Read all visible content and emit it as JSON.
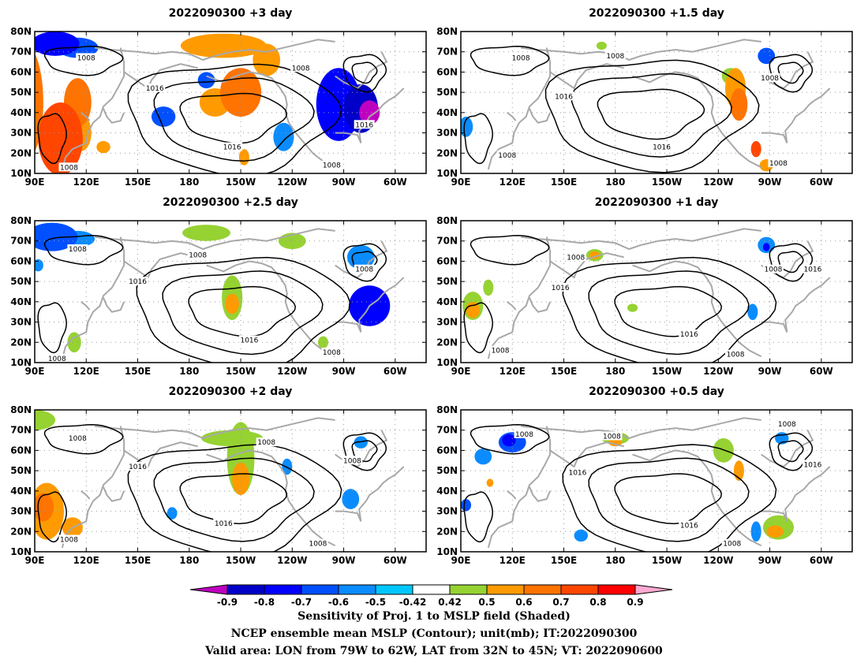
{
  "colors": {
    "-0.9": "#c000c0",
    "-0.8": "#0000c8",
    "-0.7": "#0000ff",
    "-0.6": "#0050ff",
    "-0.5": "#0a8cff",
    "-0.42": "#00c8ff",
    "0.42": "#ffffff",
    "0.5": "#96d232",
    "0.6": "#ff9b00",
    "0.7": "#ff7300",
    "0.8": "#ff4600",
    "0.9": "#ff0000",
    "over": "#ffaad2",
    "coast": "#a8a8a8",
    "contour": "#000000",
    "grid": "#9a9a9a"
  },
  "lat_ticks": [
    "80N",
    "70N",
    "60N",
    "50N",
    "40N",
    "30N",
    "20N",
    "10N"
  ],
  "lon_ticks": [
    "90E",
    "120E",
    "150E",
    "180",
    "150W",
    "120W",
    "90W",
    "60W"
  ],
  "panels": [
    {
      "title": "2022090300 +3 day",
      "contour_labels": [
        {
          "t": "1008",
          "lon": 120,
          "lat": 67
        },
        {
          "t": "1008",
          "lon": 245,
          "lat": 62
        },
        {
          "t": "1016",
          "lon": 160,
          "lat": 52
        },
        {
          "t": "1016",
          "lon": 205,
          "lat": 23
        },
        {
          "t": "1016",
          "lon": 282,
          "lat": 34
        },
        {
          "t": "1008",
          "lon": 263,
          "lat": 14
        },
        {
          "t": "1008",
          "lon": 110,
          "lat": 13
        }
      ],
      "shading": [
        {
          "lon": 85,
          "lat": 45,
          "rx": 10,
          "ry": 28,
          "v": 0.7
        },
        {
          "lon": 105,
          "lat": 27,
          "rx": 13,
          "ry": 18,
          "v": 0.8
        },
        {
          "lon": 115,
          "lat": 45,
          "rx": 8,
          "ry": 12,
          "v": 0.7
        },
        {
          "lon": 117,
          "lat": 30,
          "rx": 6,
          "ry": 9,
          "v": 0.6
        },
        {
          "lon": 210,
          "lat": 50,
          "rx": 12,
          "ry": 12,
          "v": 0.7
        },
        {
          "lon": 195,
          "lat": 45,
          "rx": 9,
          "ry": 7,
          "v": 0.6
        },
        {
          "lon": 200,
          "lat": 73,
          "rx": 25,
          "ry": 6,
          "v": 0.6
        },
        {
          "lon": 225,
          "lat": 66,
          "rx": 8,
          "ry": 8,
          "v": 0.6
        },
        {
          "lon": 102,
          "lat": 74,
          "rx": 14,
          "ry": 6,
          "v": -0.7
        },
        {
          "lon": 115,
          "lat": 72,
          "rx": 12,
          "ry": 5,
          "v": -0.6
        },
        {
          "lon": 165,
          "lat": 38,
          "rx": 7,
          "ry": 5,
          "v": -0.6
        },
        {
          "lon": 267,
          "lat": 44,
          "rx": 13,
          "ry": 18,
          "v": -0.7
        },
        {
          "lon": 280,
          "lat": 42,
          "rx": 10,
          "ry": 12,
          "v": -0.8
        },
        {
          "lon": 285,
          "lat": 40,
          "rx": 6,
          "ry": 6,
          "v": -0.9
        },
        {
          "lon": 235,
          "lat": 28,
          "rx": 6,
          "ry": 7,
          "v": -0.5
        },
        {
          "lon": 130,
          "lat": 23,
          "rx": 4,
          "ry": 3,
          "v": 0.6
        },
        {
          "lon": 212,
          "lat": 18,
          "rx": 3,
          "ry": 4,
          "v": 0.6
        },
        {
          "lon": 190,
          "lat": 56,
          "rx": 5,
          "ry": 4,
          "v": -0.6
        }
      ]
    },
    {
      "title": "2022090300 +1.5 day",
      "contour_labels": [
        {
          "t": "1008",
          "lon": 125,
          "lat": 67
        },
        {
          "t": "1008",
          "lon": 180,
          "lat": 68
        },
        {
          "t": "1016",
          "lon": 150,
          "lat": 48
        },
        {
          "t": "1016",
          "lon": 207,
          "lat": 23
        },
        {
          "t": "1008",
          "lon": 270,
          "lat": 57
        },
        {
          "t": "1008",
          "lon": 275,
          "lat": 15
        },
        {
          "t": "1008",
          "lon": 117,
          "lat": 19
        }
      ],
      "shading": [
        {
          "lon": 250,
          "lat": 52,
          "rx": 6,
          "ry": 10,
          "v": 0.6
        },
        {
          "lon": 252,
          "lat": 44,
          "rx": 5,
          "ry": 8,
          "v": 0.7
        },
        {
          "lon": 247,
          "lat": 58,
          "rx": 5,
          "ry": 4,
          "v": 0.5
        },
        {
          "lon": 262,
          "lat": 22,
          "rx": 3,
          "ry": 4,
          "v": 0.8
        },
        {
          "lon": 268,
          "lat": 14,
          "rx": 4,
          "ry": 3,
          "v": 0.6
        },
        {
          "lon": 268,
          "lat": 68,
          "rx": 5,
          "ry": 4,
          "v": -0.6
        },
        {
          "lon": 93,
          "lat": 33,
          "rx": 4,
          "ry": 5,
          "v": -0.5
        },
        {
          "lon": 172,
          "lat": 73,
          "rx": 3,
          "ry": 2,
          "v": 0.5
        }
      ]
    },
    {
      "title": "2022090300 +2.5 day",
      "contour_labels": [
        {
          "t": "1008",
          "lon": 115,
          "lat": 66
        },
        {
          "t": "1008",
          "lon": 185,
          "lat": 63
        },
        {
          "t": "1008",
          "lon": 282,
          "lat": 56
        },
        {
          "t": "1016",
          "lon": 150,
          "lat": 50
        },
        {
          "t": "1016",
          "lon": 215,
          "lat": 21
        },
        {
          "t": "1008",
          "lon": 263,
          "lat": 15
        },
        {
          "t": "1008",
          "lon": 103,
          "lat": 12
        }
      ],
      "shading": [
        {
          "lon": 100,
          "lat": 72,
          "rx": 15,
          "ry": 7,
          "v": -0.6
        },
        {
          "lon": 115,
          "lat": 71,
          "rx": 10,
          "ry": 4,
          "v": -0.5
        },
        {
          "lon": 205,
          "lat": 42,
          "rx": 6,
          "ry": 11,
          "v": 0.5
        },
        {
          "lon": 205,
          "lat": 39,
          "rx": 4,
          "ry": 5,
          "v": 0.6
        },
        {
          "lon": 190,
          "lat": 74,
          "rx": 14,
          "ry": 4,
          "v": 0.5
        },
        {
          "lon": 240,
          "lat": 70,
          "rx": 8,
          "ry": 4,
          "v": 0.5
        },
        {
          "lon": 285,
          "lat": 38,
          "rx": 12,
          "ry": 10,
          "v": -0.7
        },
        {
          "lon": 280,
          "lat": 62,
          "rx": 8,
          "ry": 6,
          "v": -0.5
        },
        {
          "lon": 113,
          "lat": 20,
          "rx": 4,
          "ry": 5,
          "v": 0.5
        },
        {
          "lon": 258,
          "lat": 20,
          "rx": 3,
          "ry": 3,
          "v": 0.5
        },
        {
          "lon": 92,
          "lat": 58,
          "rx": 3,
          "ry": 3,
          "v": -0.5
        }
      ]
    },
    {
      "title": "2022090300 +1 day",
      "contour_labels": [
        {
          "t": "1008",
          "lon": 157,
          "lat": 62
        },
        {
          "t": "1008",
          "lon": 272,
          "lat": 56
        },
        {
          "t": "1016",
          "lon": 148,
          "lat": 47
        },
        {
          "t": "1016",
          "lon": 223,
          "lat": 24
        },
        {
          "t": "1016",
          "lon": 295,
          "lat": 56
        },
        {
          "t": "1008",
          "lon": 250,
          "lat": 14
        },
        {
          "t": "1008",
          "lon": 113,
          "lat": 16
        }
      ],
      "shading": [
        {
          "lon": 97,
          "lat": 38,
          "rx": 6,
          "ry": 7,
          "v": 0.5
        },
        {
          "lon": 97,
          "lat": 36,
          "rx": 4,
          "ry": 4,
          "v": 0.6
        },
        {
          "lon": 106,
          "lat": 47,
          "rx": 3,
          "ry": 4,
          "v": 0.5
        },
        {
          "lon": 168,
          "lat": 63,
          "rx": 5,
          "ry": 3,
          "v": 0.5
        },
        {
          "lon": 168,
          "lat": 63,
          "rx": 3,
          "ry": 2,
          "v": 0.6
        },
        {
          "lon": 190,
          "lat": 37,
          "rx": 3,
          "ry": 2,
          "v": 0.5
        },
        {
          "lon": 268,
          "lat": 68,
          "rx": 5,
          "ry": 4,
          "v": -0.5
        },
        {
          "lon": 268,
          "lat": 67,
          "rx": 2,
          "ry": 2,
          "v": -0.7
        },
        {
          "lon": 260,
          "lat": 35,
          "rx": 3,
          "ry": 4,
          "v": -0.5
        }
      ]
    },
    {
      "title": "2022090300 +2 day",
      "contour_labels": [
        {
          "t": "1008",
          "lon": 115,
          "lat": 66
        },
        {
          "t": "1008",
          "lon": 225,
          "lat": 64
        },
        {
          "t": "1008",
          "lon": 275,
          "lat": 55
        },
        {
          "t": "1016",
          "lon": 150,
          "lat": 52
        },
        {
          "t": "1016",
          "lon": 200,
          "lat": 24
        },
        {
          "t": "1008",
          "lon": 255,
          "lat": 14
        },
        {
          "t": "1008",
          "lon": 110,
          "lat": 16
        }
      ],
      "shading": [
        {
          "lon": 90,
          "lat": 75,
          "rx": 12,
          "ry": 5,
          "v": 0.5
        },
        {
          "lon": 210,
          "lat": 56,
          "rx": 8,
          "ry": 18,
          "v": 0.5
        },
        {
          "lon": 210,
          "lat": 46,
          "rx": 5,
          "ry": 8,
          "v": 0.6
        },
        {
          "lon": 205,
          "lat": 66,
          "rx": 18,
          "ry": 4,
          "v": 0.5
        },
        {
          "lon": 97,
          "lat": 30,
          "rx": 10,
          "ry": 14,
          "v": 0.6
        },
        {
          "lon": 95,
          "lat": 32,
          "rx": 6,
          "ry": 7,
          "v": 0.7
        },
        {
          "lon": 112,
          "lat": 22,
          "rx": 6,
          "ry": 5,
          "v": 0.6
        },
        {
          "lon": 170,
          "lat": 29,
          "rx": 3,
          "ry": 3,
          "v": -0.5
        },
        {
          "lon": 237,
          "lat": 52,
          "rx": 3,
          "ry": 4,
          "v": -0.5
        },
        {
          "lon": 274,
          "lat": 36,
          "rx": 5,
          "ry": 5,
          "v": -0.5
        },
        {
          "lon": 280,
          "lat": 64,
          "rx": 4,
          "ry": 3,
          "v": -0.5
        }
      ]
    },
    {
      "title": "2022090300 +0.5 day",
      "contour_labels": [
        {
          "t": "1008",
          "lon": 127,
          "lat": 68
        },
        {
          "t": "1008",
          "lon": 178,
          "lat": 67
        },
        {
          "t": "1016",
          "lon": 158,
          "lat": 49
        },
        {
          "t": "1016",
          "lon": 223,
          "lat": 23
        },
        {
          "t": "1016",
          "lon": 295,
          "lat": 53
        },
        {
          "t": "1008",
          "lon": 280,
          "lat": 73
        },
        {
          "t": "1008",
          "lon": 248,
          "lat": 14
        }
      ],
      "shading": [
        {
          "lon": 120,
          "lat": 64,
          "rx": 8,
          "ry": 5,
          "v": -0.6
        },
        {
          "lon": 118,
          "lat": 65,
          "rx": 4,
          "ry": 3,
          "v": -0.7
        },
        {
          "lon": 103,
          "lat": 57,
          "rx": 5,
          "ry": 4,
          "v": -0.5
        },
        {
          "lon": 180,
          "lat": 66,
          "rx": 8,
          "ry": 3,
          "v": 0.5
        },
        {
          "lon": 180,
          "lat": 64,
          "rx": 4,
          "ry": 2,
          "v": 0.6
        },
        {
          "lon": 243,
          "lat": 60,
          "rx": 6,
          "ry": 6,
          "v": 0.5
        },
        {
          "lon": 252,
          "lat": 50,
          "rx": 3,
          "ry": 5,
          "v": 0.6
        },
        {
          "lon": 275,
          "lat": 22,
          "rx": 9,
          "ry": 6,
          "v": 0.5
        },
        {
          "lon": 273,
          "lat": 20,
          "rx": 5,
          "ry": 3,
          "v": 0.6
        },
        {
          "lon": 262,
          "lat": 20,
          "rx": 3,
          "ry": 5,
          "v": -0.5
        },
        {
          "lon": 160,
          "lat": 18,
          "rx": 4,
          "ry": 3,
          "v": -0.5
        },
        {
          "lon": 93,
          "lat": 33,
          "rx": 3,
          "ry": 3,
          "v": -0.6
        },
        {
          "lon": 107,
          "lat": 44,
          "rx": 2,
          "ry": 2,
          "v": 0.6
        },
        {
          "lon": 277,
          "lat": 66,
          "rx": 4,
          "ry": 3,
          "v": -0.5
        }
      ]
    }
  ],
  "colorbar": {
    "levels": [
      -0.9,
      -0.8,
      -0.7,
      -0.6,
      -0.5,
      -0.42,
      0.42,
      0.5,
      0.6,
      0.7,
      0.8,
      0.9
    ],
    "labels": [
      "-0.9",
      "-0.8",
      "-0.7",
      "-0.6",
      "-0.5",
      "-0.42",
      "0.42",
      "0.5",
      "0.6",
      "0.7",
      "0.8",
      "0.9"
    ],
    "colors": [
      "#0000c8",
      "#0000ff",
      "#0050ff",
      "#0a8cff",
      "#00c8ff",
      "#ffffff",
      "#96d232",
      "#ff9b00",
      "#ff7300",
      "#ff4600",
      "#ff0000"
    ],
    "under": "#c000c0",
    "over": "#ffaad2"
  },
  "footer": {
    "line1": "Sensitivity of Proj. 1 to MSLP field (Shaded)",
    "line2": "NCEP ensemble mean MSLP (Contour); unit(mb); IT:2022090300",
    "line3": "Valid area: LON from 79W to 62W, LAT from 32N to 45N; VT: 2022090600"
  }
}
